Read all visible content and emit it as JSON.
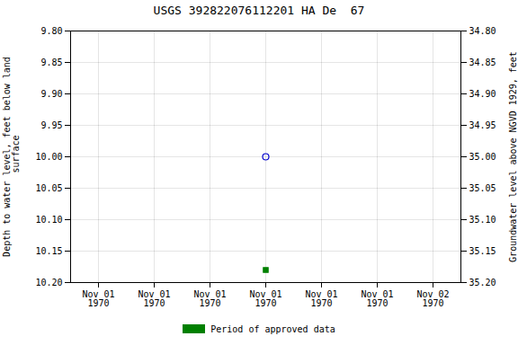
{
  "chart_data": {
    "type": "scatter",
    "title": "USGS 392822076112201 HA De  67",
    "ylabel": "Depth to water level, feet below land\n surface",
    "y2label": "Groundwater level above NGVD 1929, feet",
    "categories": [
      "Nov 01\n1970",
      "Nov 01\n1970",
      "Nov 01\n1970",
      "Nov 01\n1970",
      "Nov 01\n1970",
      "Nov 01\n1970",
      "Nov 02\n1970"
    ],
    "ylim": [
      10.2,
      9.8
    ],
    "yticks": [
      {
        "value": 9.8,
        "label": "9.80"
      },
      {
        "value": 9.85,
        "label": "9.85"
      },
      {
        "value": 9.9,
        "label": "9.90"
      },
      {
        "value": 9.95,
        "label": "9.95"
      },
      {
        "value": 10.0,
        "label": "10.00"
      },
      {
        "value": 10.05,
        "label": "10.05"
      },
      {
        "value": 10.1,
        "label": "10.10"
      },
      {
        "value": 10.15,
        "label": "10.15"
      },
      {
        "value": 10.2,
        "label": "10.20"
      }
    ],
    "y2lim": [
      35.2,
      34.8
    ],
    "y2ticks": [
      {
        "value": 35.2,
        "label": "35.20"
      },
      {
        "value": 35.15,
        "label": "35.15"
      },
      {
        "value": 35.1,
        "label": "35.10"
      },
      {
        "value": 35.05,
        "label": "35.05"
      },
      {
        "value": 35.0,
        "label": "35.00"
      },
      {
        "value": 34.95,
        "label": "34.95"
      },
      {
        "value": 34.9,
        "label": "34.90"
      },
      {
        "value": 34.85,
        "label": "34.85"
      },
      {
        "value": 34.8,
        "label": "34.80"
      }
    ],
    "grid": true,
    "legend": "bottom",
    "series": [
      {
        "color": "#0000cc",
        "marker": "circle",
        "values": [
          null,
          null,
          null,
          10.0,
          null,
          null,
          null
        ]
      },
      {
        "name": "Period of approved data",
        "color": "#008000",
        "marker": "square",
        "values": [
          null,
          null,
          null,
          10.18,
          null,
          null,
          null
        ]
      }
    ]
  }
}
